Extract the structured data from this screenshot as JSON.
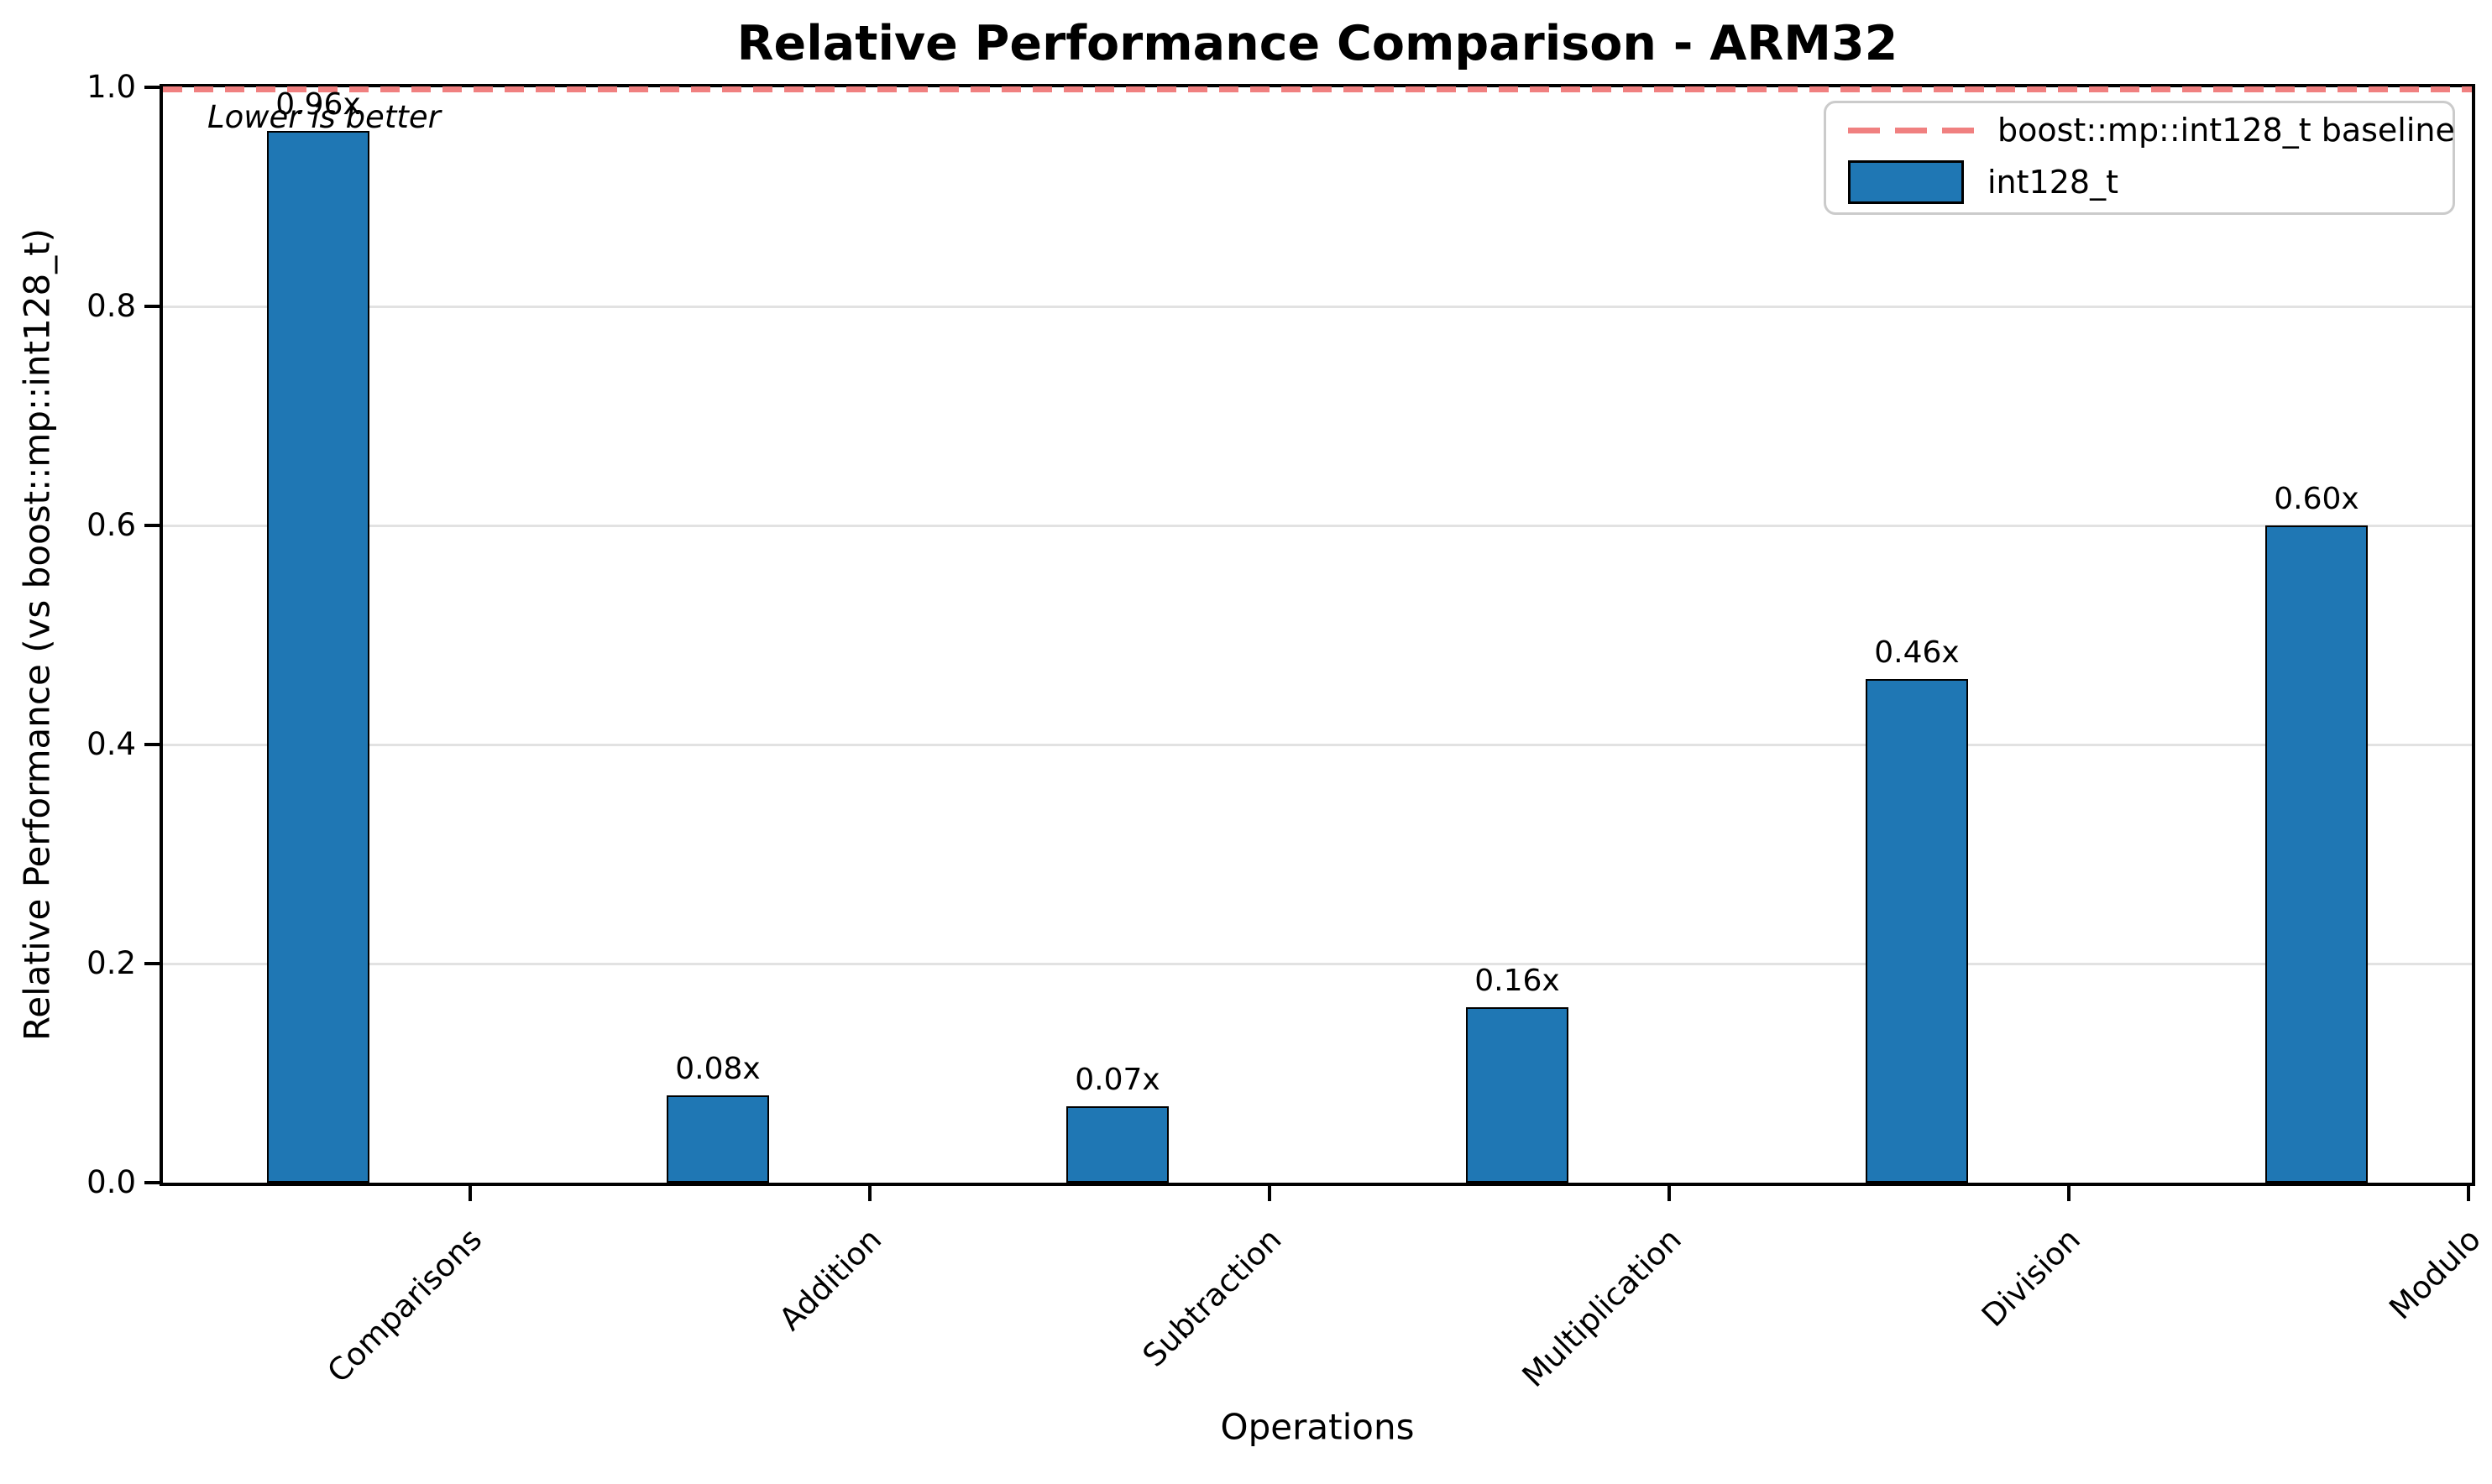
{
  "chart_data": {
    "type": "bar",
    "title": "Relative Performance Comparison - ARM32",
    "xlabel": "Operations",
    "ylabel": "Relative Performance (vs boost::mp::int128_t)",
    "categories": [
      "Comparisons",
      "Addition",
      "Subtraction",
      "Multiplication",
      "Division",
      "Modulo"
    ],
    "values": [
      0.96,
      0.08,
      0.07,
      0.16,
      0.46,
      0.6
    ],
    "bar_labels": [
      "0.96x",
      "0.08x",
      "0.07x",
      "0.16x",
      "0.46x",
      "0.60x"
    ],
    "series_name": "int128_t",
    "baseline": {
      "value": 1.0,
      "label": "boost::mp::int128_t baseline"
    },
    "annotation": "Lower is better",
    "ylim": [
      0.0,
      1.0
    ],
    "yticks": [
      0.0,
      0.2,
      0.4,
      0.6,
      0.8,
      1.0
    ],
    "ytick_labels": [
      "0.0",
      "0.2",
      "0.4",
      "0.6",
      "0.8",
      "1.0"
    ],
    "grid": "horizontal",
    "legend_position": "upper right",
    "colors": {
      "bar_fill": "#1f77b4",
      "bar_edge": "#000000",
      "baseline_color": "#f08080",
      "grid_color": "#e2e2e2",
      "legend_border": "#cbcbcb",
      "text_color": "#000000"
    }
  }
}
